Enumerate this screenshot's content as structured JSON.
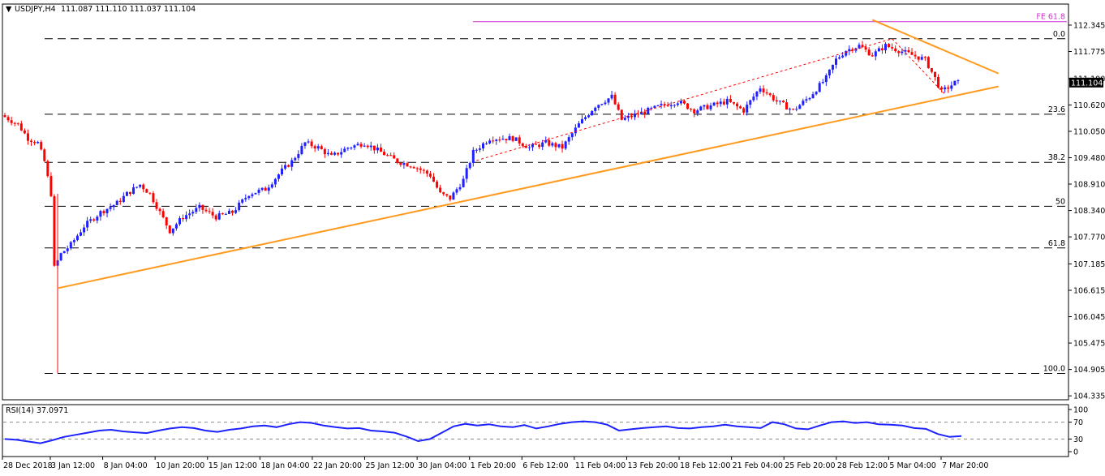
{
  "header": {
    "arrow": "▼",
    "symbol": "USDJPY,H4",
    "ohlc": "111.087 111.110 111.037 111.104"
  },
  "current_price": "111.104",
  "colors": {
    "bull": "#1f1fff",
    "bear": "#ff0000",
    "trendline": "#ff9a1f",
    "fe_line": "#cc33cc",
    "rsi": "#1e22ff",
    "level": "#000000",
    "channel": "#ff0000"
  },
  "chart_data": [
    {
      "type": "candlestick",
      "symbol": "USDJPY",
      "timeframe": "H4",
      "y_ticks": [
        "112.345",
        "111.775",
        "111.190",
        "110.620",
        "110.050",
        "109.480",
        "108.910",
        "108.340",
        "107.770",
        "107.185",
        "106.615",
        "106.045",
        "105.475",
        "104.905",
        "104.335"
      ],
      "x_ticks": [
        "28 Dec 2018",
        "3 Jan 12:00",
        "8 Jan 04:00",
        "10 Jan 20:00",
        "15 Jan 12:00",
        "18 Jan 04:00",
        "22 Jan 20:00",
        "25 Jan 12:00",
        "30 Jan 04:00",
        "1 Feb 20:00",
        "6 Feb 12:00",
        "11 Feb 04:00",
        "13 Feb 20:00",
        "18 Feb 12:00",
        "21 Feb 04:00",
        "25 Feb 20:00",
        "28 Feb 12:00",
        "5 Mar 04:00",
        "7 Mar 20:00"
      ],
      "ylim": [
        104.25,
        112.8
      ],
      "fib_levels": [
        {
          "label": "0.0",
          "value": 112.05
        },
        {
          "label": "23.6",
          "value": 110.42
        },
        {
          "label": "38.2",
          "value": 109.38
        },
        {
          "label": "50",
          "value": 108.43
        },
        {
          "label": "61.8",
          "value": 107.53
        },
        {
          "label": "100.0",
          "value": 104.82
        }
      ],
      "fe_level": {
        "label": "FE 61.8",
        "value": 112.42
      },
      "series_path": [
        [
          0,
          110.4
        ],
        [
          5,
          110.2
        ],
        [
          8,
          109.9
        ],
        [
          11,
          109.8
        ],
        [
          13,
          109.4
        ],
        [
          15,
          108.7
        ],
        [
          16,
          107.1
        ],
        [
          18,
          107.4
        ],
        [
          21,
          107.6
        ],
        [
          25,
          108.0
        ],
        [
          30,
          108.3
        ],
        [
          35,
          108.5
        ],
        [
          38,
          108.7
        ],
        [
          42,
          108.9
        ],
        [
          45,
          108.7
        ],
        [
          48,
          108.3
        ],
        [
          51,
          107.9
        ],
        [
          55,
          108.2
        ],
        [
          60,
          108.4
        ],
        [
          65,
          108.2
        ],
        [
          70,
          108.3
        ],
        [
          75,
          108.7
        ],
        [
          80,
          108.8
        ],
        [
          85,
          109.2
        ],
        [
          88,
          109.4
        ],
        [
          92,
          109.8
        ],
        [
          96,
          109.7
        ],
        [
          100,
          109.5
        ],
        [
          105,
          109.7
        ],
        [
          110,
          109.8
        ],
        [
          115,
          109.6
        ],
        [
          120,
          109.4
        ],
        [
          125,
          109.3
        ],
        [
          130,
          109.1
        ],
        [
          133,
          108.7
        ],
        [
          136,
          108.6
        ],
        [
          140,
          109.0
        ],
        [
          143,
          109.6
        ],
        [
          148,
          109.9
        ],
        [
          155,
          109.9
        ],
        [
          160,
          109.7
        ],
        [
          165,
          109.8
        ],
        [
          170,
          109.7
        ],
        [
          175,
          110.2
        ],
        [
          180,
          110.6
        ],
        [
          185,
          110.8
        ],
        [
          188,
          110.3
        ],
        [
          192,
          110.4
        ],
        [
          196,
          110.5
        ],
        [
          200,
          110.6
        ],
        [
          205,
          110.7
        ],
        [
          210,
          110.5
        ],
        [
          215,
          110.6
        ],
        [
          220,
          110.7
        ],
        [
          225,
          110.5
        ],
        [
          230,
          111.0
        ],
        [
          235,
          110.7
        ],
        [
          240,
          110.5
        ],
        [
          245,
          110.8
        ],
        [
          250,
          111.2
        ],
        [
          253,
          111.6
        ],
        [
          256,
          111.8
        ],
        [
          260,
          111.9
        ],
        [
          264,
          111.7
        ],
        [
          268,
          111.9
        ],
        [
          272,
          111.8
        ],
        [
          276,
          111.7
        ],
        [
          280,
          111.6
        ],
        [
          283,
          111.2
        ],
        [
          285,
          110.9
        ],
        [
          287,
          111.0
        ],
        [
          289,
          111.1
        ]
      ]
    },
    {
      "type": "line",
      "name": "RSI(14)",
      "value_label": "RSI(14) 37.0971",
      "y_ticks": [
        "100",
        "70",
        "30",
        "0"
      ],
      "ylim": [
        0,
        100
      ],
      "levels": [
        70,
        30
      ],
      "values": [
        30,
        28,
        24,
        20,
        27,
        35,
        40,
        45,
        50,
        52,
        48,
        46,
        44,
        50,
        55,
        58,
        56,
        50,
        47,
        52,
        55,
        60,
        62,
        58,
        65,
        70,
        68,
        62,
        58,
        55,
        56,
        50,
        48,
        45,
        36,
        25,
        30,
        45,
        60,
        66,
        62,
        65,
        60,
        58,
        63,
        55,
        60,
        66,
        70,
        72,
        70,
        64,
        50,
        53,
        56,
        58,
        60,
        56,
        55,
        58,
        60,
        64,
        60,
        58,
        56,
        70,
        65,
        55,
        53,
        62,
        70,
        72,
        68,
        70,
        65,
        64,
        62,
        56,
        54,
        42,
        35,
        37
      ]
    }
  ]
}
